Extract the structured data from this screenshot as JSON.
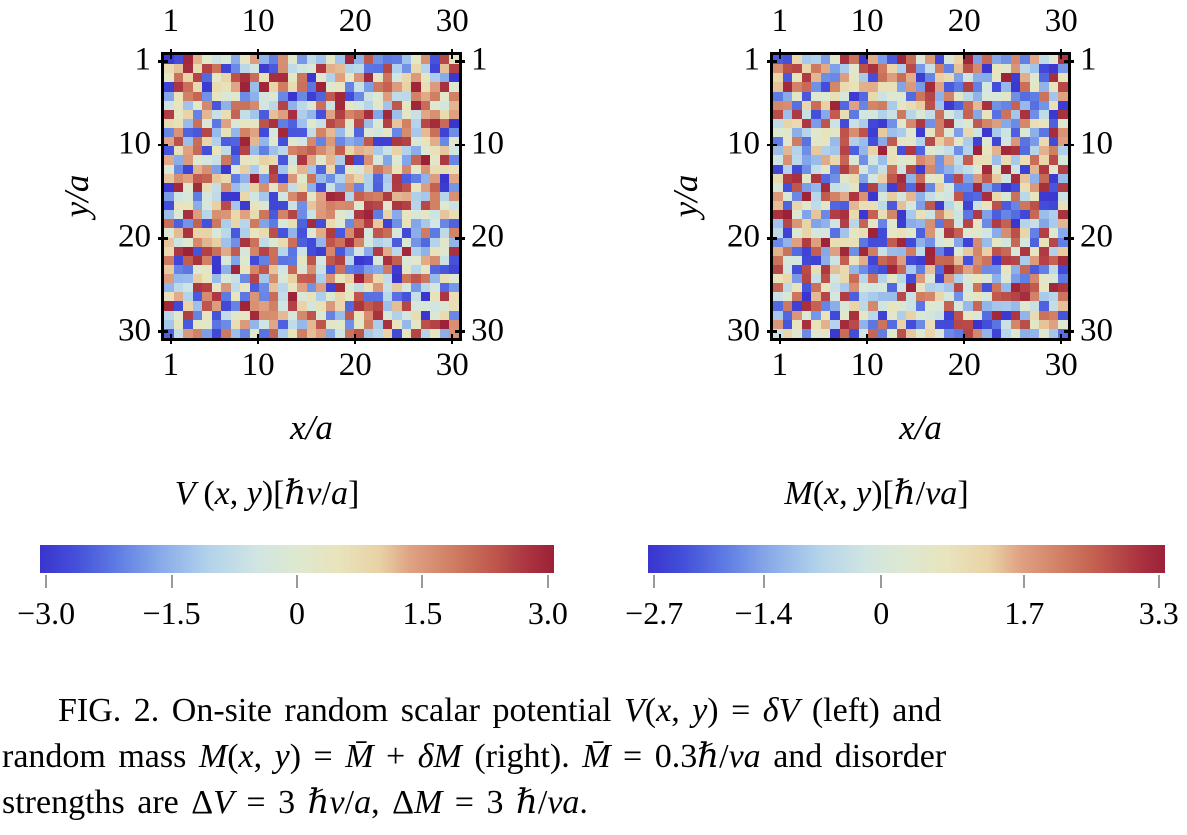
{
  "caption": {
    "lines": [
      [
        {
          "t": "FIG. 2.  On-site random scalar potential ",
          "s": "r"
        },
        {
          "t": "V",
          "s": "i"
        },
        {
          "t": "(",
          "s": "r"
        },
        {
          "t": "x",
          "s": "i"
        },
        {
          "t": ", ",
          "s": "r"
        },
        {
          "t": "y",
          "s": "i"
        },
        {
          "t": ") = ",
          "s": "r"
        },
        {
          "t": "δV",
          "s": "i"
        },
        {
          "t": " (left) and",
          "s": "r"
        }
      ],
      [
        {
          "t": "random mass ",
          "s": "r"
        },
        {
          "t": "M",
          "s": "i"
        },
        {
          "t": "(",
          "s": "r"
        },
        {
          "t": "x",
          "s": "i"
        },
        {
          "t": ", ",
          "s": "r"
        },
        {
          "t": "y",
          "s": "i"
        },
        {
          "t": ") = ",
          "s": "r"
        },
        {
          "t": "M̄",
          "s": "i"
        },
        {
          "t": " + ",
          "s": "r"
        },
        {
          "t": "δM",
          "s": "i"
        },
        {
          "t": " (right). ",
          "s": "r"
        },
        {
          "t": "M̄",
          "s": "i"
        },
        {
          "t": " = 0.3",
          "s": "r"
        },
        {
          "t": "ℏ",
          "s": "i"
        },
        {
          "t": "/",
          "s": "r"
        },
        {
          "t": "va",
          "s": "i"
        },
        {
          "t": " and disorder",
          "s": "r"
        }
      ],
      [
        {
          "t": "strengths are Δ",
          "s": "r"
        },
        {
          "t": "V",
          "s": "i"
        },
        {
          "t": " = 3 ",
          "s": "r"
        },
        {
          "t": "ℏv",
          "s": "i"
        },
        {
          "t": "/",
          "s": "r"
        },
        {
          "t": "a",
          "s": "i"
        },
        {
          "t": ", Δ",
          "s": "r"
        },
        {
          "t": "M",
          "s": "i"
        },
        {
          "t": " = 3 ",
          "s": "r"
        },
        {
          "t": "ℏ",
          "s": "i"
        },
        {
          "t": "/",
          "s": "r"
        },
        {
          "t": "va",
          "s": "i"
        },
        {
          "t": ".",
          "s": "r"
        }
      ]
    ]
  },
  "chart_data": [
    {
      "type": "heatmap",
      "panel": "left",
      "title": "V (x, y)[ℏv/a]",
      "title_segments": [
        {
          "t": "V ",
          "s": "i"
        },
        {
          "t": "(",
          "s": "r"
        },
        {
          "t": "x",
          "s": "i"
        },
        {
          "t": ", ",
          "s": "r"
        },
        {
          "t": "y",
          "s": "i"
        },
        {
          "t": ")[",
          "s": "r"
        },
        {
          "t": "ℏv",
          "s": "i"
        },
        {
          "t": "/",
          "s": "r"
        },
        {
          "t": "a",
          "s": "i"
        },
        {
          "t": "]",
          "s": "r"
        }
      ],
      "xlabel": "x/a",
      "ylabel": "y/a",
      "x_tick_values": [
        1,
        10,
        20,
        30
      ],
      "x_tick_labels": [
        "1",
        "10",
        "20",
        "30"
      ],
      "y_tick_values": [
        1,
        10,
        20,
        30
      ],
      "y_tick_labels": [
        "1",
        "10",
        "20",
        "30"
      ],
      "grid_rows": 31,
      "grid_cols": 31,
      "value_range": [
        -3.0,
        3.0
      ],
      "values_summary": "uncorrelated random on-site disorder δV, uniform over [−3.0, 3.0] ℏv/a; individual cell values are not labeled in the figure",
      "random_seed": 7,
      "colorbar_tick_values": [
        -3.0,
        -1.5,
        0,
        1.5,
        3.0
      ],
      "colorbar_tick_labels": [
        "−3.0",
        "−1.5",
        "0",
        "1.5",
        "3.0"
      ]
    },
    {
      "type": "heatmap",
      "panel": "right",
      "title": "M(x, y)[ℏ/va]",
      "title_segments": [
        {
          "t": "M",
          "s": "i"
        },
        {
          "t": "(",
          "s": "r"
        },
        {
          "t": "x",
          "s": "i"
        },
        {
          "t": ", ",
          "s": "r"
        },
        {
          "t": "y",
          "s": "i"
        },
        {
          "t": ")[",
          "s": "r"
        },
        {
          "t": "ℏ",
          "s": "i"
        },
        {
          "t": "/",
          "s": "r"
        },
        {
          "t": "va",
          "s": "i"
        },
        {
          "t": "]",
          "s": "r"
        }
      ],
      "xlabel": "x/a",
      "ylabel": "y/a",
      "x_tick_values": [
        1,
        10,
        20,
        30
      ],
      "x_tick_labels": [
        "1",
        "10",
        "20",
        "30"
      ],
      "y_tick_values": [
        1,
        10,
        20,
        30
      ],
      "y_tick_labels": [
        "1",
        "10",
        "20",
        "30"
      ],
      "grid_rows": 31,
      "grid_cols": 31,
      "value_range": [
        -2.7,
        3.3
      ],
      "values_summary": "random mass disorder M = 0.3 + δM, uniform over [−2.7, 3.3] ℏ/va; individual cell values are not labeled in the figure",
      "random_seed": 23,
      "colorbar_tick_values": [
        -2.7,
        -1.4,
        0,
        1.7,
        3.3
      ],
      "colorbar_tick_labels": [
        "−2.7",
        "−1.4",
        "0",
        "1.7",
        "3.3"
      ]
    }
  ],
  "colormap": {
    "description": "diverging blue → pale green-cream → dark red",
    "stops": [
      [
        0.0,
        "#3a34ce"
      ],
      [
        0.07,
        "#4450da"
      ],
      [
        0.15,
        "#5f7ce3"
      ],
      [
        0.24,
        "#8aadea"
      ],
      [
        0.33,
        "#b3d3eb"
      ],
      [
        0.42,
        "#d0e5e2"
      ],
      [
        0.5,
        "#dee8d0"
      ],
      [
        0.58,
        "#e8e4bc"
      ],
      [
        0.66,
        "#e9d2a6"
      ],
      [
        0.72,
        "#dfa283"
      ],
      [
        0.8,
        "#d17f63"
      ],
      [
        0.88,
        "#c0584d"
      ],
      [
        0.95,
        "#aa3340"
      ],
      [
        1.0,
        "#9c2137"
      ]
    ],
    "tick_color": "#9a9a9a",
    "frame_color": "#000000"
  }
}
